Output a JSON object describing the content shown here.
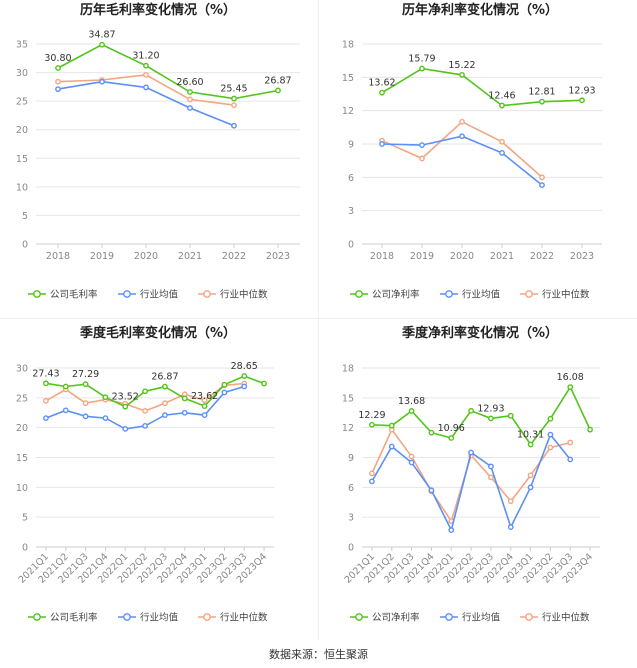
{
  "footer": {
    "source_label": "数据来源：恒生聚源"
  },
  "colors": {
    "company": "#52c41a",
    "industry_avg": "#5b8ff9",
    "industry_median": "#f4a582"
  },
  "chart_data": [
    {
      "type": "line",
      "title": "历年毛利率变化情况（%）",
      "categories": [
        "2018",
        "2019",
        "2020",
        "2021",
        "2022",
        "2023"
      ],
      "ylim": [
        0,
        35
      ],
      "yticks": [
        0,
        5,
        10,
        15,
        20,
        25,
        30,
        35
      ],
      "grid": true,
      "legend_position": "bottom",
      "series": [
        {
          "name": "公司毛利率",
          "values": [
            30.8,
            34.87,
            31.2,
            26.6,
            25.45,
            26.87
          ],
          "labels": [
            "30.80",
            "34.87",
            "31.20",
            "26.60",
            "25.45",
            "26.87"
          ]
        },
        {
          "name": "行业均值",
          "values": [
            27.1,
            28.4,
            27.4,
            23.8,
            20.7,
            null
          ]
        },
        {
          "name": "行业中位数",
          "values": [
            28.4,
            28.7,
            29.6,
            25.3,
            24.3,
            null
          ]
        }
      ]
    },
    {
      "type": "line",
      "title": "历年净利率变化情况（%）",
      "categories": [
        "2018",
        "2019",
        "2020",
        "2021",
        "2022",
        "2023"
      ],
      "ylim": [
        0,
        18
      ],
      "yticks": [
        0,
        3,
        6,
        9,
        12,
        15,
        18
      ],
      "grid": true,
      "legend_position": "bottom",
      "series": [
        {
          "name": "公司净利率",
          "values": [
            13.62,
            15.79,
            15.22,
            12.46,
            12.81,
            12.93
          ],
          "labels": [
            "13.62",
            "15.79",
            "15.22",
            "12.46",
            "12.81",
            "12.93"
          ]
        },
        {
          "name": "行业均值",
          "values": [
            9.0,
            8.9,
            9.7,
            8.2,
            5.3,
            null
          ]
        },
        {
          "name": "行业中位数",
          "values": [
            9.3,
            7.7,
            11.0,
            9.2,
            6.0,
            null
          ]
        }
      ]
    },
    {
      "type": "line",
      "title": "季度毛利率变化情况（%）",
      "categories": [
        "2021Q1",
        "2021Q2",
        "2021Q3",
        "2021Q4",
        "2022Q1",
        "2022Q2",
        "2022Q3",
        "2022Q4",
        "2023Q1",
        "2023Q2",
        "2023Q3",
        "2023Q4"
      ],
      "ylim": [
        0,
        30
      ],
      "yticks": [
        0,
        5,
        10,
        15,
        20,
        25,
        30
      ],
      "grid": true,
      "legend_position": "bottom",
      "series": [
        {
          "name": "公司毛利率",
          "values": [
            27.43,
            26.9,
            27.29,
            25.1,
            23.52,
            26.1,
            26.87,
            24.9,
            23.62,
            27.2,
            28.65,
            27.4
          ],
          "labels": [
            "27.43",
            "",
            "27.29",
            "",
            "23.52",
            "",
            "26.87",
            "",
            "23.62",
            "",
            "28.65",
            ""
          ]
        },
        {
          "name": "行业均值",
          "values": [
            21.6,
            22.9,
            21.9,
            21.6,
            19.8,
            20.3,
            22.1,
            22.5,
            22.1,
            25.9,
            26.9,
            null
          ]
        },
        {
          "name": "行业中位数",
          "values": [
            24.5,
            26.4,
            24.1,
            24.7,
            24.0,
            22.8,
            24.1,
            25.6,
            24.6,
            27.1,
            27.4,
            null
          ]
        }
      ]
    },
    {
      "type": "line",
      "title": "季度净利率变化情况（%）",
      "categories": [
        "2021Q1",
        "2021Q2",
        "2021Q3",
        "2021Q4",
        "2022Q1",
        "2022Q2",
        "2022Q3",
        "2022Q4",
        "2023Q1",
        "2023Q2",
        "2023Q3",
        "2023Q4"
      ],
      "ylim": [
        0,
        18
      ],
      "yticks": [
        0,
        3,
        6,
        9,
        12,
        15,
        18
      ],
      "grid": true,
      "legend_position": "bottom",
      "series": [
        {
          "name": "公司净利率",
          "values": [
            12.29,
            12.2,
            13.68,
            11.5,
            10.96,
            13.7,
            12.93,
            13.2,
            10.31,
            12.9,
            16.08,
            11.8
          ],
          "labels": [
            "12.29",
            "",
            "13.68",
            "",
            "10.96",
            "",
            "12.93",
            "",
            "10.31",
            "",
            "16.08",
            ""
          ]
        },
        {
          "name": "行业均值",
          "values": [
            6.6,
            10.1,
            8.5,
            5.7,
            1.7,
            9.5,
            8.1,
            2.0,
            6.0,
            11.3,
            8.8,
            null
          ]
        },
        {
          "name": "行业中位数",
          "values": [
            7.4,
            11.8,
            9.1,
            5.6,
            2.6,
            9.2,
            7.0,
            4.6,
            7.2,
            10.0,
            10.5,
            null
          ]
        }
      ]
    }
  ]
}
